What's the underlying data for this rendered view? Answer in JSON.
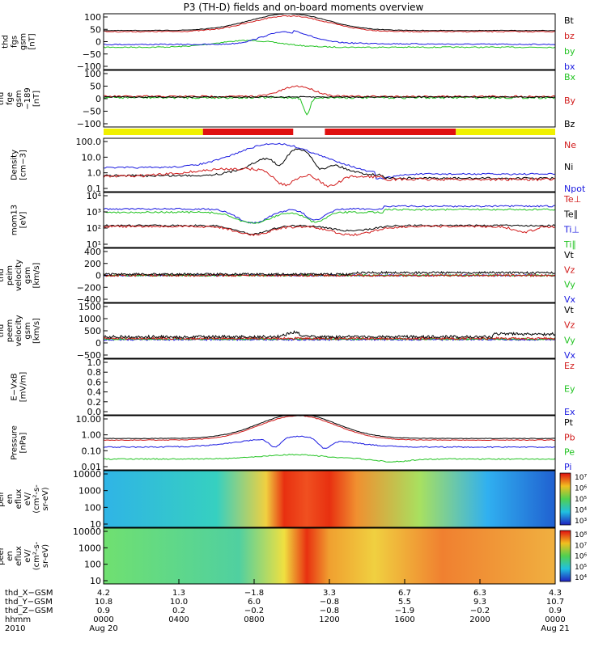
{
  "title": "P3 (TH-D) fields and on-board moments overview",
  "colors": {
    "black": "#000000",
    "red": "#d11a1a",
    "green": "#22c322",
    "blue": "#1a1ae0"
  },
  "chart_data": [
    {
      "type": "line",
      "name": "fgs",
      "ylabel": [
        "thd",
        "fgs",
        "gsm",
        "[nT]"
      ],
      "yticks": [
        "100",
        "50",
        "0",
        "−50",
        "−100"
      ],
      "legend": [
        {
          "label": "Bt",
          "color": "black"
        },
        {
          "label": "bz",
          "color": "red"
        },
        {
          "label": "by",
          "color": "green"
        },
        {
          "label": "bx",
          "color": "blue"
        }
      ]
    },
    {
      "type": "line",
      "name": "fgs-dsl",
      "ylabel": [
        "thd",
        "fge",
        "gsm",
        "−189",
        "[nT]"
      ],
      "yticks": [
        "100",
        "50",
        "0",
        "−50",
        "−100"
      ],
      "legend": [
        {
          "label": "Bx",
          "color": "green"
        },
        {
          "label": "By",
          "color": "red"
        },
        {
          "label": "Bz",
          "color": "black"
        }
      ]
    },
    {
      "type": "line",
      "name": "density",
      "scale": "log",
      "ylabel": [
        "Density",
        "[cm−3]"
      ],
      "yticks": [
        "100.0",
        "10.0",
        "1.0",
        "0.1"
      ],
      "legend": [
        {
          "label": "Ne",
          "color": "red"
        },
        {
          "label": "Ni",
          "color": "black"
        },
        {
          "label": "Npot",
          "color": "blue"
        }
      ]
    },
    {
      "type": "line",
      "name": "temperature",
      "scale": "log",
      "ylabel": [
        "mom13",
        "[eV]"
      ],
      "yticks": [
        "10⁴",
        "10³",
        "10²",
        "10¹"
      ],
      "legend": [
        {
          "label": "Te⊥",
          "color": "red"
        },
        {
          "label": "Te∥",
          "color": "black"
        },
        {
          "label": "Ti⊥",
          "color": "blue"
        },
        {
          "label": "Ti∥",
          "color": "green"
        }
      ]
    },
    {
      "type": "line",
      "name": "peim-velocity",
      "ylabel": [
        "thd",
        "peim",
        "velocity",
        "gsm",
        "[km/s]"
      ],
      "yticks": [
        "400",
        "200",
        "0",
        "−200",
        "−400"
      ],
      "legend": [
        {
          "label": "Vt",
          "color": "black"
        },
        {
          "label": "Vz",
          "color": "red"
        },
        {
          "label": "Vy",
          "color": "green"
        },
        {
          "label": "Vx",
          "color": "blue"
        }
      ]
    },
    {
      "type": "line",
      "name": "peem-velocity",
      "ylabel": [
        "thd",
        "peem",
        "velocity",
        "gsm",
        "[km/s]"
      ],
      "yticks": [
        "1500",
        "1000",
        "500",
        "0",
        "−500"
      ],
      "legend": [
        {
          "label": "Vt",
          "color": "black"
        },
        {
          "label": "Vz",
          "color": "red"
        },
        {
          "label": "Vy",
          "color": "green"
        },
        {
          "label": "Vx",
          "color": "blue"
        }
      ]
    },
    {
      "type": "line",
      "name": "exb",
      "ylabel": [
        "E−VxB",
        "[mV/m]"
      ],
      "yticks": [
        "1.0",
        "0.8",
        "0.6",
        "0.4",
        "0.2",
        "0.0"
      ],
      "legend": [
        {
          "label": "Ez",
          "color": "red"
        },
        {
          "label": "Ey",
          "color": "green"
        },
        {
          "label": "Ex",
          "color": "blue"
        }
      ]
    },
    {
      "type": "line",
      "name": "pressure",
      "scale": "log",
      "ylabel": [
        "Pressure",
        "[nPa]"
      ],
      "yticks": [
        "10.00",
        "1.00",
        "0.10",
        "0.01"
      ],
      "legend": [
        {
          "label": "Pt",
          "color": "black"
        },
        {
          "label": "Pb",
          "color": "red"
        },
        {
          "label": "Pe",
          "color": "green"
        },
        {
          "label": "Pi",
          "color": "blue"
        }
      ]
    },
    {
      "type": "heatmap",
      "name": "peir-en",
      "ylabel": [
        "thd",
        "peir",
        "en",
        "eflux",
        "eV/",
        "(cm²-s-",
        "sr-eV)"
      ],
      "yticks": [
        "10000",
        "1000",
        "100",
        "10"
      ],
      "colorbar": [
        "10⁷",
        "10⁶",
        "10⁵",
        "10⁴",
        "10³"
      ]
    },
    {
      "type": "heatmap",
      "name": "peer-en",
      "ylabel": [
        "thd",
        "peer",
        "en",
        "eflux",
        "eV/",
        "(cm²-s-",
        "sr-eV)"
      ],
      "yticks": [
        "10000",
        "1000",
        "100",
        "10"
      ],
      "colorbar": [
        "10⁸",
        "10⁷",
        "10⁶",
        "10⁵",
        "10⁴"
      ]
    }
  ],
  "x_axis": {
    "rows": [
      {
        "label": "thd_X−GSM",
        "values": [
          "4.2",
          "1.3",
          "−1.8",
          "3.3",
          "6.7",
          "6.3",
          "4.3"
        ]
      },
      {
        "label": "thd_Y−GSM",
        "values": [
          "10.8",
          "10.0",
          "6.0",
          "−0.8",
          "5.5",
          "9.3",
          "10.7"
        ]
      },
      {
        "label": "thd_Z−GSM",
        "values": [
          "0.9",
          "0.2",
          "−0.2",
          "−0.8",
          "−1.9",
          "−0.2",
          "0.9"
        ]
      },
      {
        "label": "hhmm",
        "values": [
          "0000",
          "0400",
          "0800",
          "1200",
          "1600",
          "2000",
          "0000"
        ]
      },
      {
        "label": "2010",
        "values": [
          "Aug 20",
          "",
          "",
          "",
          "",
          "",
          "Aug 21"
        ]
      }
    ]
  }
}
